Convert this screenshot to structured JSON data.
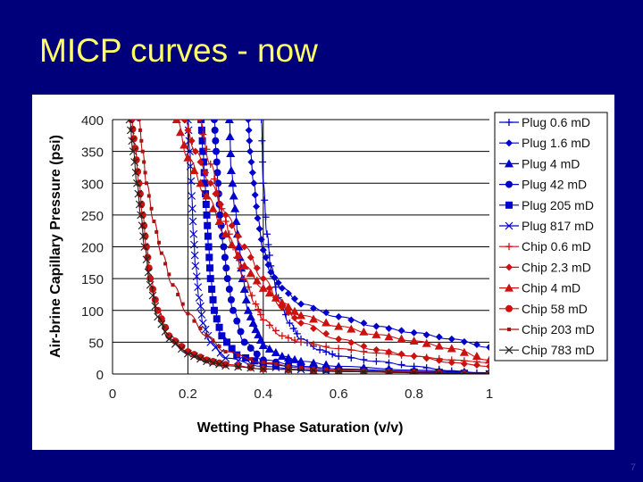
{
  "slide": {
    "title": "MICP curves - now",
    "page_number": "7"
  },
  "colors": {
    "background": "#00007a",
    "title": "#ffff66",
    "blue_series": "#0000cc",
    "red_series": "#cc1111",
    "grid": "#000000"
  },
  "chart_data": {
    "type": "line",
    "xlabel": "Wetting Phase Saturation (v/v)",
    "ylabel": "Air-brine Capillary Pressure (psi)",
    "xlim": [
      0,
      1
    ],
    "ylim": [
      0,
      400
    ],
    "xticks": [
      0,
      0.2,
      0.4,
      0.6,
      0.8,
      1
    ],
    "xtick_labels": [
      "0",
      "0.2",
      "0.4",
      "0.6",
      "0.8",
      "1"
    ],
    "yticks": [
      0,
      50,
      100,
      150,
      200,
      250,
      300,
      350,
      400
    ],
    "ytick_labels": [
      "0",
      "50",
      "100",
      "150",
      "200",
      "250",
      "300",
      "350",
      "400"
    ],
    "grid": "vertical lines at 0.2 and 0.4, horizontal gridlines every 50",
    "legend_position": "right",
    "series": [
      {
        "name": "Plug 0.6 mD",
        "color": "#0000cc",
        "marker": "plus",
        "points": [
          [
            1.0,
            0
          ],
          [
            0.9,
            5
          ],
          [
            0.8,
            12
          ],
          [
            0.7,
            20
          ],
          [
            0.6,
            28
          ],
          [
            0.55,
            38
          ],
          [
            0.5,
            55
          ],
          [
            0.47,
            80
          ],
          [
            0.44,
            120
          ],
          [
            0.42,
            170
          ],
          [
            0.41,
            220
          ],
          [
            0.4,
            300
          ],
          [
            0.395,
            400
          ]
        ]
      },
      {
        "name": "Plug 1.6 mD",
        "color": "#0000cc",
        "marker": "diamond",
        "points": [
          [
            1.0,
            42
          ],
          [
            0.9,
            55
          ],
          [
            0.8,
            65
          ],
          [
            0.7,
            75
          ],
          [
            0.6,
            90
          ],
          [
            0.5,
            110
          ],
          [
            0.45,
            135
          ],
          [
            0.42,
            160
          ],
          [
            0.4,
            195
          ],
          [
            0.385,
            245
          ],
          [
            0.375,
            300
          ],
          [
            0.365,
            350
          ],
          [
            0.36,
            400
          ]
        ]
      },
      {
        "name": "Plug 4 mD",
        "color": "#0000cc",
        "marker": "triangle",
        "points": [
          [
            1.0,
            2
          ],
          [
            0.8,
            6
          ],
          [
            0.6,
            12
          ],
          [
            0.5,
            20
          ],
          [
            0.45,
            28
          ],
          [
            0.4,
            45
          ],
          [
            0.38,
            70
          ],
          [
            0.36,
            100
          ],
          [
            0.345,
            150
          ],
          [
            0.335,
            200
          ],
          [
            0.325,
            260
          ],
          [
            0.315,
            320
          ],
          [
            0.31,
            400
          ]
        ]
      },
      {
        "name": "Plug 42 mD",
        "color": "#0000cc",
        "marker": "circle",
        "points": [
          [
            1.0,
            1
          ],
          [
            0.8,
            4
          ],
          [
            0.6,
            8
          ],
          [
            0.5,
            12
          ],
          [
            0.4,
            22
          ],
          [
            0.35,
            50
          ],
          [
            0.32,
            100
          ],
          [
            0.305,
            150
          ],
          [
            0.295,
            200
          ],
          [
            0.285,
            250
          ],
          [
            0.28,
            300
          ],
          [
            0.275,
            350
          ],
          [
            0.27,
            400
          ]
        ]
      },
      {
        "name": "Plug 205 mD",
        "color": "#0000cc",
        "marker": "square",
        "points": [
          [
            1.0,
            0
          ],
          [
            0.8,
            3
          ],
          [
            0.6,
            6
          ],
          [
            0.5,
            10
          ],
          [
            0.4,
            16
          ],
          [
            0.33,
            30
          ],
          [
            0.29,
            60
          ],
          [
            0.27,
            100
          ],
          [
            0.26,
            150
          ],
          [
            0.255,
            200
          ],
          [
            0.25,
            250
          ],
          [
            0.245,
            300
          ],
          [
            0.24,
            350
          ],
          [
            0.235,
            400
          ]
        ]
      },
      {
        "name": "Plug 817 mD",
        "color": "#0000cc",
        "marker": "x",
        "points": [
          [
            1.0,
            0
          ],
          [
            0.8,
            2
          ],
          [
            0.6,
            4
          ],
          [
            0.5,
            7
          ],
          [
            0.4,
            12
          ],
          [
            0.3,
            25
          ],
          [
            0.26,
            50
          ],
          [
            0.24,
            80
          ],
          [
            0.23,
            120
          ],
          [
            0.22,
            170
          ],
          [
            0.215,
            220
          ],
          [
            0.21,
            280
          ],
          [
            0.205,
            350
          ],
          [
            0.2,
            400
          ]
        ]
      },
      {
        "name": "Chip 0.6 mD",
        "color": "#cc1111",
        "marker": "plus",
        "points": [
          [
            1.0,
            18
          ],
          [
            0.9,
            22
          ],
          [
            0.8,
            28
          ],
          [
            0.7,
            33
          ],
          [
            0.6,
            40
          ],
          [
            0.5,
            50
          ],
          [
            0.45,
            60
          ],
          [
            0.4,
            85
          ],
          [
            0.38,
            110
          ],
          [
            0.35,
            150
          ],
          [
            0.32,
            200
          ],
          [
            0.29,
            260
          ],
          [
            0.26,
            330
          ],
          [
            0.23,
            400
          ]
        ]
      },
      {
        "name": "Chip 2.3 mD",
        "color": "#cc1111",
        "marker": "diamond",
        "points": [
          [
            1.0,
            12
          ],
          [
            0.9,
            18
          ],
          [
            0.8,
            28
          ],
          [
            0.7,
            38
          ],
          [
            0.6,
            55
          ],
          [
            0.5,
            80
          ],
          [
            0.45,
            105
          ],
          [
            0.4,
            150
          ],
          [
            0.35,
            200
          ],
          [
            0.3,
            250
          ],
          [
            0.26,
            300
          ],
          [
            0.22,
            350
          ],
          [
            0.19,
            400
          ]
        ]
      },
      {
        "name": "Chip 4 mD",
        "color": "#cc1111",
        "marker": "triangle",
        "points": [
          [
            1.0,
            22
          ],
          [
            0.9,
            40
          ],
          [
            0.8,
            52
          ],
          [
            0.7,
            62
          ],
          [
            0.6,
            75
          ],
          [
            0.5,
            92
          ],
          [
            0.45,
            112
          ],
          [
            0.4,
            135
          ],
          [
            0.35,
            170
          ],
          [
            0.3,
            220
          ],
          [
            0.25,
            280
          ],
          [
            0.2,
            340
          ],
          [
            0.17,
            400
          ]
        ]
      },
      {
        "name": "Chip 58 mD",
        "color": "#cc1111",
        "marker": "circle",
        "points": [
          [
            1.0,
            0
          ],
          [
            0.8,
            2
          ],
          [
            0.6,
            4
          ],
          [
            0.4,
            8
          ],
          [
            0.3,
            15
          ],
          [
            0.25,
            22
          ],
          [
            0.2,
            35
          ],
          [
            0.15,
            60
          ],
          [
            0.12,
            100
          ],
          [
            0.1,
            150
          ],
          [
            0.09,
            200
          ],
          [
            0.08,
            250
          ],
          [
            0.07,
            300
          ],
          [
            0.06,
            355
          ],
          [
            0.05,
            400
          ]
        ]
      },
      {
        "name": "Chip 203 mD",
        "color": "#aa1111",
        "marker": "smallsquare",
        "points": [
          [
            1.0,
            0
          ],
          [
            0.8,
            3
          ],
          [
            0.6,
            6
          ],
          [
            0.5,
            10
          ],
          [
            0.4,
            18
          ],
          [
            0.3,
            35
          ],
          [
            0.25,
            60
          ],
          [
            0.2,
            95
          ],
          [
            0.16,
            140
          ],
          [
            0.13,
            190
          ],
          [
            0.11,
            240
          ],
          [
            0.09,
            300
          ],
          [
            0.08,
            350
          ],
          [
            0.07,
            400
          ]
        ]
      },
      {
        "name": "Chip 783 mD",
        "color": "#222222",
        "marker": "x",
        "points": [
          [
            1.0,
            0
          ],
          [
            0.8,
            2
          ],
          [
            0.6,
            4
          ],
          [
            0.4,
            8
          ],
          [
            0.3,
            13
          ],
          [
            0.25,
            20
          ],
          [
            0.2,
            32
          ],
          [
            0.15,
            55
          ],
          [
            0.12,
            90
          ],
          [
            0.1,
            140
          ],
          [
            0.085,
            200
          ],
          [
            0.075,
            250
          ],
          [
            0.065,
            300
          ],
          [
            0.055,
            350
          ],
          [
            0.045,
            400
          ]
        ]
      }
    ]
  }
}
